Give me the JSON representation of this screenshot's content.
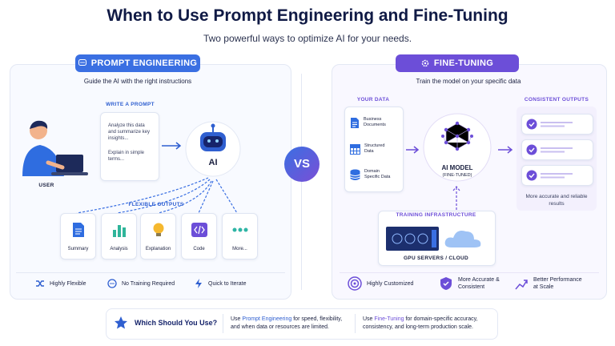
{
  "header": {
    "title": "When to Use Prompt Engineering and Fine-Tuning",
    "subtitle": "Two powerful ways to optimize AI for your needs."
  },
  "left": {
    "badge": "PROMPT ENGINEERING",
    "tagline": "Guide the AI with the right instructions",
    "user": "USER",
    "prompt_heading": "WRITE A PROMPT",
    "prompt_lines": [
      "Analyze this data and summarize key insights...",
      "Explain in simple terms..."
    ],
    "ai": "AI",
    "outputs_heading": "FLEXIBLE OUTPUTS",
    "outputs": [
      "Summary",
      "Analysis",
      "Explanation",
      "Code",
      "More..."
    ],
    "features": [
      "Highly Flexible",
      "No Training Required",
      "Quick to Iterate"
    ]
  },
  "vs": "VS",
  "right": {
    "badge": "FINE-TUNING",
    "tagline": "Train the model on your specific data",
    "data_heading": "YOUR DATA",
    "data_items": [
      "Business Documents",
      "Structured Data",
      "Domain Specific Data"
    ],
    "model": "AI MODEL",
    "model_note": "(FINE-TUNED)",
    "outputs_heading": "CONSISTENT OUTPUTS",
    "outputs_note": "More accurate and reliable results",
    "infra_heading": "TRAINING INFRASTRUCTURE",
    "infra_label": "GPU SERVERS / CLOUD",
    "features": [
      "Highly Customized",
      "More Accurate & Consistent",
      "Better Performance at Scale"
    ]
  },
  "footer": {
    "question": "Which Should You Use?",
    "prompt_advice": {
      "lead": "Use",
      "highlight": "Prompt Engineering",
      "rest": "for speed, flexibility, and when data or resources are limited."
    },
    "tuning_advice": {
      "lead": "Use",
      "highlight": "Fine-Tuning",
      "rest": "for domain-specific accuracy, consistency, and long-term production scale."
    }
  }
}
